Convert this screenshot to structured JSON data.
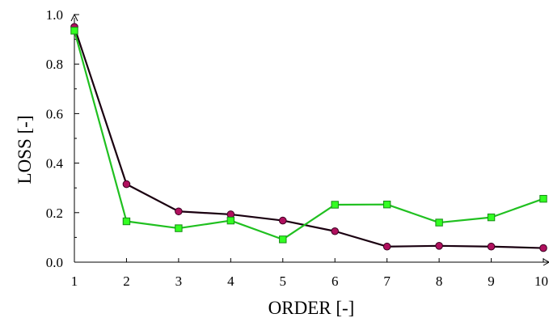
{
  "chart_data": {
    "type": "line",
    "xlabel": "ORDER [-]",
    "ylabel": "LOSS [-]",
    "xlim": [
      1,
      10
    ],
    "ylim": [
      0,
      1.0
    ],
    "x_ticks": [
      "1",
      "2",
      "3",
      "4",
      "5",
      "6",
      "7",
      "8",
      "9",
      "10"
    ],
    "y_ticks": [
      "0.0",
      "0.2",
      "0.4",
      "0.6",
      "0.8",
      "1.0"
    ],
    "grid": false,
    "x": [
      1,
      2,
      3,
      4,
      5,
      6,
      7,
      8,
      9,
      10
    ],
    "series": [
      {
        "marker": "circle",
        "line_color": "#1a0010",
        "marker_color": "#b0105e",
        "values": [
          0.95,
          0.315,
          0.205,
          0.193,
          0.168,
          0.125,
          0.063,
          0.066,
          0.063,
          0.057
        ]
      },
      {
        "marker": "square",
        "line_color": "#20c020",
        "marker_color": "#33ff22",
        "values": [
          0.935,
          0.165,
          0.137,
          0.168,
          0.092,
          0.232,
          0.233,
          0.16,
          0.181,
          0.256
        ]
      }
    ]
  }
}
